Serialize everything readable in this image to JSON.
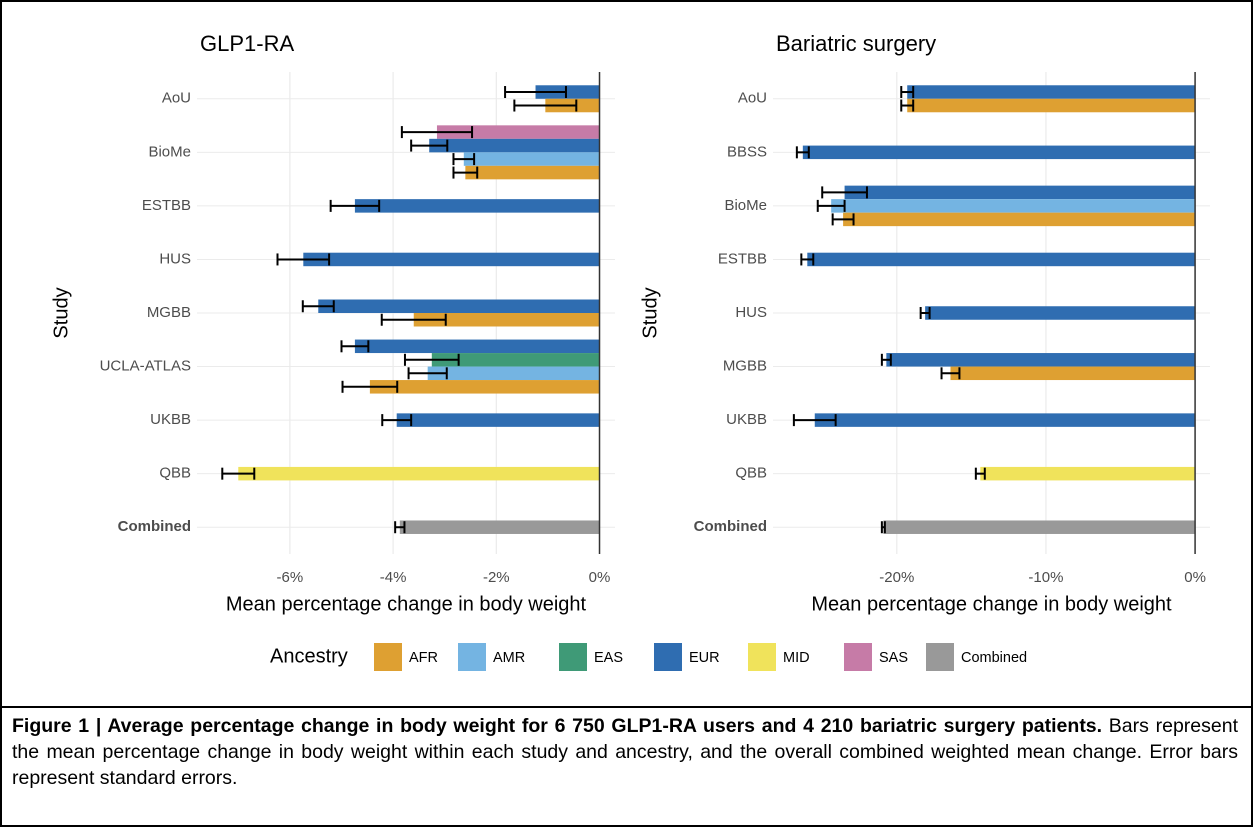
{
  "chart_data": [
    {
      "type": "bar",
      "title": "GLP1-RA",
      "x_label": "Mean percentage change in body weight",
      "y_label": "Study",
      "categories": [
        "AoU",
        "BioMe",
        "ESTBB",
        "HUS",
        "MGBB",
        "UCLA-ATLAS",
        "UKBB",
        "QBB",
        "Combined"
      ],
      "xlim": [
        -7.8,
        0.3
      ],
      "xticks": [
        {
          "value": -6,
          "label": "-6%"
        },
        {
          "value": -4,
          "label": "-4%"
        },
        {
          "value": -2,
          "label": "-2%"
        },
        {
          "value": 0,
          "label": "0%"
        }
      ],
      "grid": true,
      "series": [
        {
          "name": "AFR",
          "color": "#dea032",
          "values": [
            -1.05,
            -2.6,
            null,
            null,
            -3.6,
            -4.45,
            null,
            null,
            null
          ],
          "errors": [
            0.6,
            0.23,
            null,
            null,
            0.62,
            0.53,
            null,
            null,
            null
          ]
        },
        {
          "name": "AMR",
          "color": "#74b4e2",
          "values": [
            null,
            -2.63,
            null,
            null,
            null,
            -3.33,
            null,
            null,
            null
          ],
          "errors": [
            null,
            0.2,
            null,
            null,
            null,
            0.37,
            null,
            null,
            null
          ]
        },
        {
          "name": "EAS",
          "color": "#3f9a77",
          "values": [
            null,
            null,
            null,
            null,
            null,
            -3.25,
            null,
            null,
            null
          ],
          "errors": [
            null,
            null,
            null,
            null,
            null,
            0.52,
            null,
            null,
            null
          ]
        },
        {
          "name": "EUR",
          "color": "#2f6db1",
          "values": [
            -1.24,
            -3.3,
            -4.74,
            -5.74,
            -5.45,
            -4.74,
            -3.93,
            null,
            null
          ],
          "errors": [
            0.59,
            0.35,
            0.47,
            0.5,
            0.3,
            0.26,
            0.28,
            null,
            null
          ]
        },
        {
          "name": "MID",
          "color": "#f0e35b",
          "values": [
            null,
            null,
            null,
            null,
            null,
            null,
            null,
            -7.0,
            null
          ],
          "errors": [
            null,
            null,
            null,
            null,
            null,
            null,
            null,
            0.31,
            null
          ]
        },
        {
          "name": "SAS",
          "color": "#c67ba7",
          "values": [
            null,
            -3.15,
            null,
            null,
            null,
            null,
            null,
            null,
            null
          ],
          "errors": [
            null,
            0.68,
            null,
            null,
            null,
            null,
            null,
            null,
            null
          ]
        },
        {
          "name": "Combined",
          "color": "#999999",
          "values": [
            null,
            null,
            null,
            null,
            null,
            null,
            null,
            null,
            -3.87
          ],
          "errors": [
            null,
            null,
            null,
            null,
            null,
            null,
            null,
            null,
            0.09
          ]
        }
      ]
    },
    {
      "type": "bar",
      "title": "Bariatric surgery",
      "x_label": "Mean percentage change in body weight",
      "y_label": "Study",
      "categories": [
        "AoU",
        "BBSS",
        "BioMe",
        "ESTBB",
        "HUS",
        "MGBB",
        "UKBB",
        "QBB",
        "Combined"
      ],
      "xlim": [
        -28.3,
        1
      ],
      "xticks": [
        {
          "value": -20,
          "label": "-20%"
        },
        {
          "value": -10,
          "label": "-10%"
        },
        {
          "value": 0,
          "label": "0%"
        }
      ],
      "grid": true,
      "series": [
        {
          "name": "AFR",
          "color": "#dea032",
          "values": [
            -19.3,
            null,
            -23.6,
            null,
            null,
            -16.4,
            null,
            null,
            null
          ],
          "errors": [
            0.4,
            null,
            0.7,
            null,
            null,
            0.6,
            null,
            null,
            null
          ]
        },
        {
          "name": "AMR",
          "color": "#74b4e2",
          "values": [
            null,
            null,
            -24.4,
            null,
            null,
            null,
            null,
            null,
            null
          ],
          "errors": [
            null,
            null,
            0.9,
            null,
            null,
            null,
            null,
            null,
            null
          ]
        },
        {
          "name": "EUR",
          "color": "#2f6db1",
          "values": [
            -19.3,
            -26.3,
            -23.5,
            -26.0,
            -18.1,
            -20.7,
            -25.5,
            null,
            null
          ],
          "errors": [
            0.4,
            0.4,
            1.5,
            0.4,
            0.3,
            0.3,
            1.4,
            null,
            null
          ]
        },
        {
          "name": "MID",
          "color": "#f0e35b",
          "values": [
            null,
            null,
            null,
            null,
            null,
            null,
            null,
            -14.4,
            null
          ],
          "errors": [
            null,
            null,
            null,
            null,
            null,
            null,
            null,
            0.3,
            null
          ]
        },
        {
          "name": "Combined",
          "color": "#999999",
          "values": [
            null,
            null,
            null,
            null,
            null,
            null,
            null,
            null,
            -20.9
          ],
          "errors": [
            null,
            null,
            null,
            null,
            null,
            null,
            null,
            null,
            0.1
          ]
        }
      ]
    }
  ],
  "legend_title": "Ancestry",
  "caption": {
    "bold": "Figure 1 | Average percentage change in body weight for 6 750 GLP1-RA users and 4 210 bariatric surgery patients.",
    "text": " Bars represent the mean percentage change in body weight within each study and ancestry, and the overall combined weighted mean change. Error bars represent standard errors."
  }
}
